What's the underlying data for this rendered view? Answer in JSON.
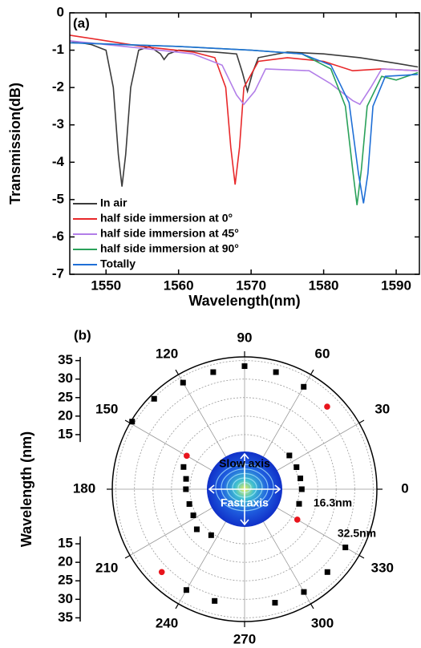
{
  "chart_data": [
    {
      "type": "line",
      "title": "(a)",
      "xlabel": "Wavelength(nm)",
      "ylabel": "Transmission(dB)",
      "xlim": [
        1545,
        1593.2
      ],
      "xticks": [
        1550,
        1560,
        1570,
        1580,
        1590
      ],
      "ylim": [
        -7,
        0
      ],
      "yticks": [
        -7,
        -6,
        -5,
        -4,
        -3,
        -2,
        -1,
        0
      ],
      "legend": "lower left",
      "series": [
        {
          "name": "In air",
          "color": "#3b3b3b",
          "x": [
            1545,
            1548,
            1550,
            1551,
            1551.7,
            1552.2,
            1552.7,
            1553.4,
            1554.5,
            1556,
            1557.5,
            1558,
            1558.6,
            1560,
            1565,
            1568,
            1568.8,
            1569.5,
            1570.2,
            1571,
            1575,
            1580,
            1585,
            1590,
            1593
          ],
          "values": [
            -0.75,
            -0.85,
            -1.0,
            -2.0,
            -3.8,
            -4.65,
            -3.8,
            -2.0,
            -1.0,
            -0.9,
            -1.1,
            -1.25,
            -1.1,
            -1.0,
            -1.05,
            -1.1,
            -1.6,
            -2.1,
            -1.6,
            -1.2,
            -1.05,
            -1.1,
            -1.2,
            -1.35,
            -1.45
          ]
        },
        {
          "name": "half side immersion at 0°",
          "color": "#e8282a",
          "x": [
            1545,
            1555,
            1562,
            1565,
            1566.5,
            1567.2,
            1567.8,
            1568.4,
            1569,
            1571,
            1575,
            1580,
            1584,
            1588,
            1593
          ],
          "values": [
            -0.6,
            -0.9,
            -1.05,
            -1.2,
            -2.0,
            -3.6,
            -4.6,
            -3.6,
            -2.0,
            -1.3,
            -1.2,
            -1.3,
            -1.55,
            -1.5,
            -1.55
          ]
        },
        {
          "name": "half side immersion at 45°",
          "color": "#b27ee8",
          "x": [
            1545,
            1555,
            1562,
            1566,
            1568,
            1569,
            1570.5,
            1572,
            1578,
            1581,
            1584,
            1585,
            1586.5,
            1588,
            1593
          ],
          "values": [
            -0.75,
            -0.95,
            -1.1,
            -1.4,
            -2.2,
            -2.45,
            -2.1,
            -1.5,
            -1.55,
            -1.9,
            -2.35,
            -2.45,
            -2.0,
            -1.5,
            -1.55
          ]
        },
        {
          "name": "half side immersion at 90°",
          "color": "#2aa15a",
          "x": [
            1545,
            1560,
            1570,
            1577,
            1581,
            1583,
            1584,
            1584.6,
            1585.2,
            1586,
            1588,
            1590,
            1593
          ],
          "values": [
            -0.8,
            -0.9,
            -1.0,
            -1.1,
            -1.5,
            -2.5,
            -4.2,
            -5.15,
            -4.2,
            -2.5,
            -1.7,
            -1.8,
            -1.6
          ]
        },
        {
          "name": "Totally",
          "color": "#1f6fd6",
          "x": [
            1545,
            1560,
            1570,
            1577,
            1581,
            1583.5,
            1584.8,
            1585.5,
            1586.1,
            1586.8,
            1588.5,
            1593
          ],
          "values": [
            -0.8,
            -0.9,
            -1.0,
            -1.1,
            -1.4,
            -2.4,
            -4.3,
            -5.1,
            -4.3,
            -2.5,
            -1.7,
            -1.65
          ]
        }
      ]
    },
    {
      "type": "polar-scatter",
      "title": "(b)",
      "ylabel": "Wavelength (nm)",
      "rlim": [
        10,
        36
      ],
      "rticks": [
        15,
        20,
        25,
        30,
        35
      ],
      "thetaticks": [
        0,
        30,
        60,
        90,
        120,
        150,
        180,
        210,
        240,
        270,
        300,
        330
      ],
      "annotations": [
        "Slow axis",
        "Fast axis",
        "16.3nm",
        "32.5nm"
      ],
      "series": [
        {
          "color": "#000000",
          "marker": "square",
          "theta": [
            90,
            105,
            75,
            120,
            60,
            135,
            149,
            37,
            160,
            23,
            170,
            11,
            180,
            0,
            195,
            345,
            207,
            220,
            234,
            330,
            315,
            240,
            300,
            255,
            285
          ],
          "r": [
            33.5,
            33,
            33,
            33.5,
            32.2,
            34.8,
            35.7,
            15.4,
            17.8,
            15.5,
            16.3,
            15.6,
            16.1,
            15.7,
            15.7,
            15.5,
            15.8,
            17.1,
            15.6,
            31.7,
            31.9,
            31.7,
            32.3,
            31.5,
            32
          ]
        },
        {
          "color": "#e8141c",
          "marker": "circle",
          "theta": [
            45,
            150,
            330,
            225
          ],
          "r": [
            31.8,
            18.3,
            16.7,
            31.9
          ]
        }
      ]
    }
  ]
}
